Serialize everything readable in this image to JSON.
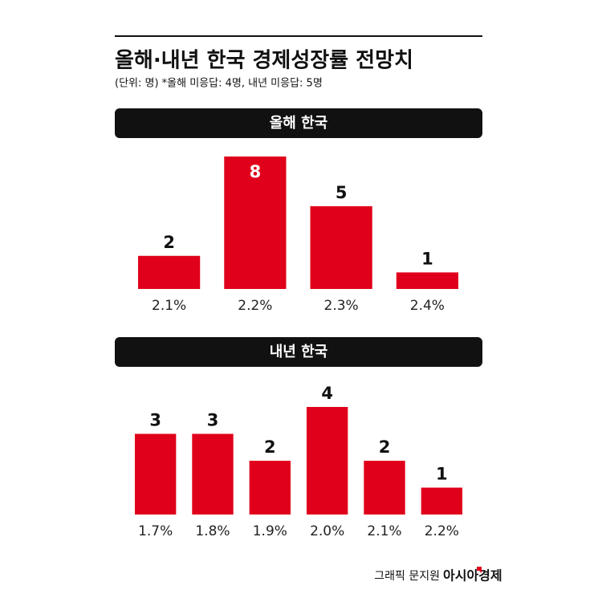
{
  "header": {
    "title": "올해·내년 한국 경제성장률 전망치",
    "subtitle": "(단위: 명)  *올해 미응답: 4명, 내년 미응답: 5명"
  },
  "chart_data": [
    {
      "type": "bar",
      "title": "올해 한국",
      "categories": [
        "2.1%",
        "2.2%",
        "2.3%",
        "2.4%"
      ],
      "values": [
        2,
        8,
        5,
        1
      ],
      "color": "#e0001b"
    },
    {
      "type": "bar",
      "title": "내년 한국",
      "categories": [
        "1.7%",
        "1.8%",
        "1.9%",
        "2.0%",
        "2.1%",
        "2.2%"
      ],
      "values": [
        3,
        3,
        2,
        4,
        2,
        1
      ],
      "color": "#e0001b"
    }
  ],
  "footer": {
    "credit": "그래픽 문지원",
    "brand": "아시아경제"
  }
}
